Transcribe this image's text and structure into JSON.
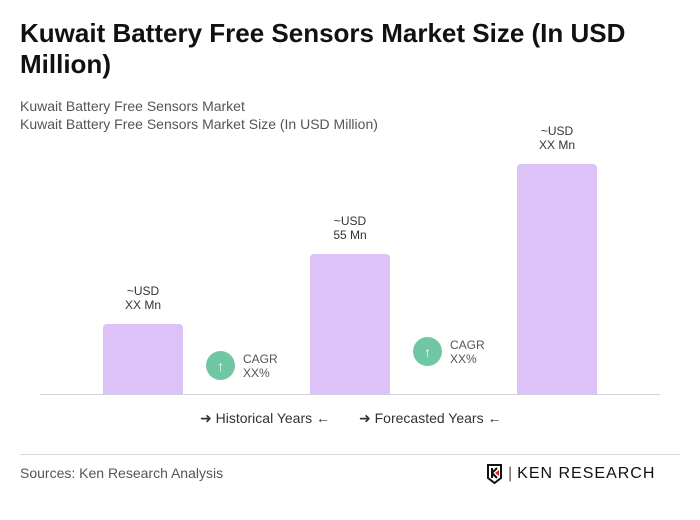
{
  "title": "Kuwait Battery Free Sensors Market Size (In USD Million)",
  "subtitle1": "Kuwait Battery Free Sensors Market",
  "subtitle2": "Kuwait Battery Free Sensors Market Size (In USD Million)",
  "chart_data": {
    "type": "bar",
    "bars": [
      {
        "label_line1": "~USD",
        "label_line2": "XX Mn",
        "value": null
      },
      {
        "label_line1": "~USD",
        "label_line2": "55 Mn",
        "value": 55
      },
      {
        "label_line1": "~USD",
        "label_line2": "XX Mn",
        "value": null
      }
    ],
    "cagr": [
      {
        "label": "CAGR",
        "value": "XX%"
      },
      {
        "label": "CAGR",
        "value": "XX%"
      }
    ],
    "legend": [
      "Historical Years",
      "Forecasted Years"
    ],
    "colors": {
      "bar": "#dcc2f7",
      "cagr": "#6fc7a4"
    }
  },
  "footer": {
    "sources": "Sources: Ken Research Analysis",
    "logo": "KEN RESEARCH"
  }
}
